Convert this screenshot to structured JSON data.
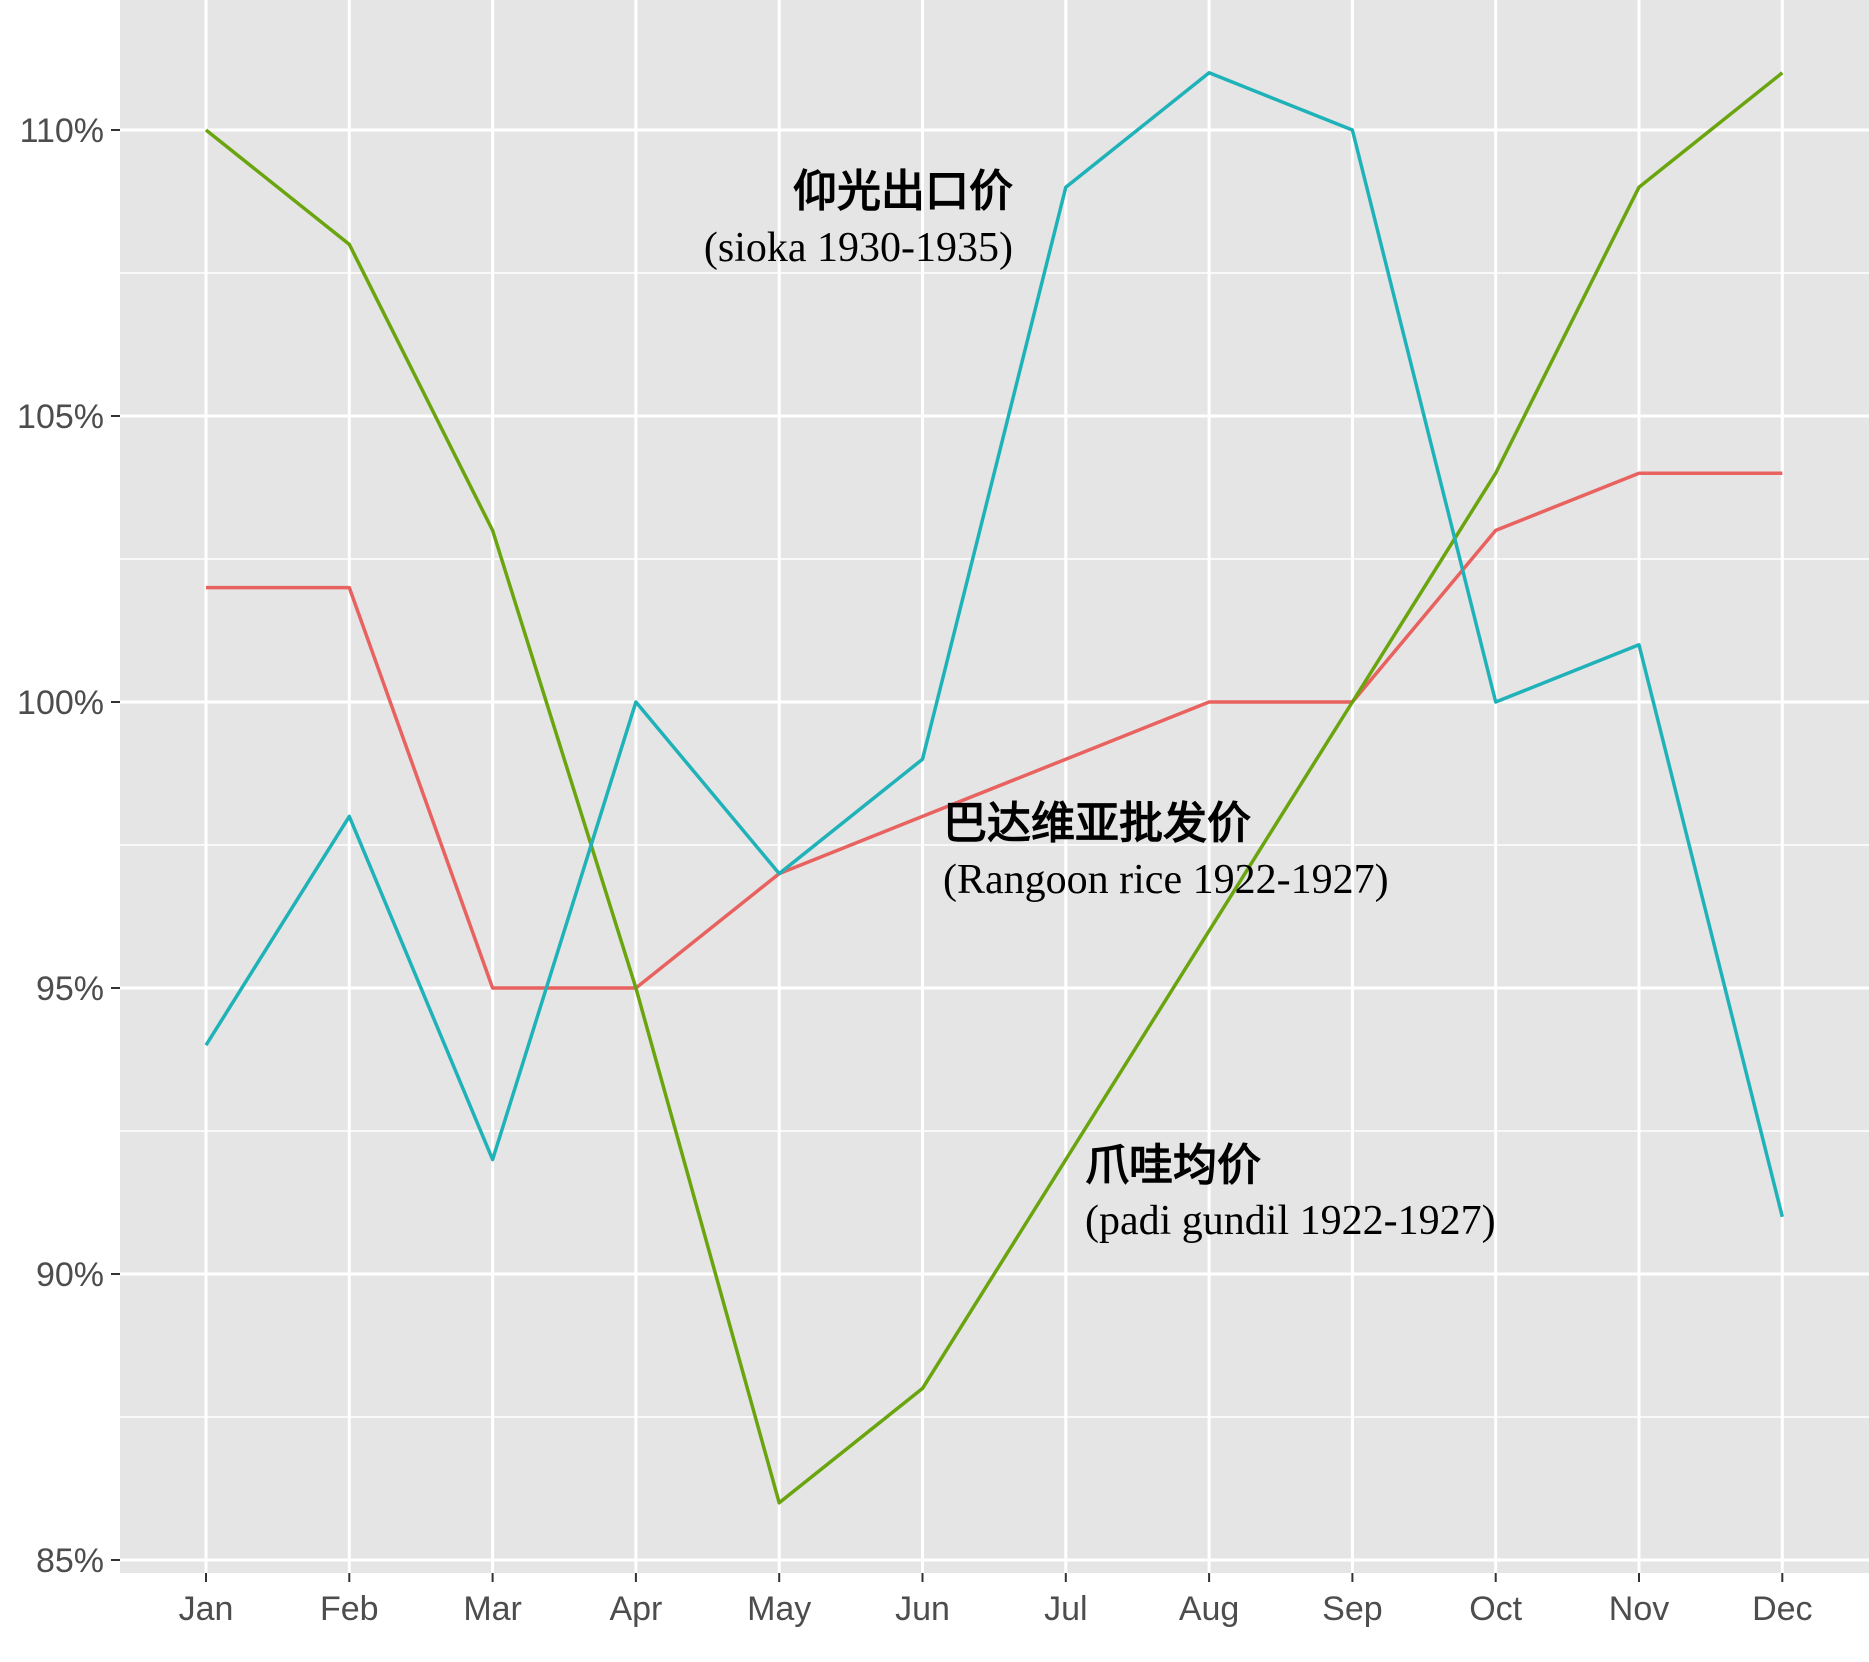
{
  "chart_data": {
    "type": "line",
    "title": "",
    "xlabel": "",
    "ylabel": "",
    "categories": [
      "Jan",
      "Feb",
      "Mar",
      "Apr",
      "May",
      "Jun",
      "Jul",
      "Aug",
      "Sep",
      "Oct",
      "Nov",
      "Dec"
    ],
    "ylim": [
      85,
      112
    ],
    "yticks": [
      85,
      90,
      95,
      100,
      105,
      110
    ],
    "ytick_labels": [
      "85%",
      "90%",
      "95%",
      "100%",
      "105%",
      "110%"
    ],
    "grid": true,
    "legend": "none",
    "series": [
      {
        "key": "batavia",
        "color": "#e8625f",
        "values": [
          102,
          102,
          95,
          95,
          97,
          98,
          99,
          100,
          100,
          103,
          104,
          104
        ]
      },
      {
        "key": "java",
        "color": "#6aa50f",
        "values": [
          110,
          108,
          103,
          95,
          86,
          88,
          92,
          96,
          100,
          104,
          109,
          111
        ]
      },
      {
        "key": "rangoon",
        "color": "#1fb2b8",
        "values": [
          94,
          98,
          92,
          100,
          97,
          99,
          109,
          111,
          110,
          100,
          101,
          91
        ]
      }
    ],
    "annotations": [
      {
        "key": "rangoon",
        "cn": "仰光出口价",
        "en": "(sioka 1930-1935)"
      },
      {
        "key": "batavia",
        "cn": "巴达维亚批发价",
        "en": "(Rangoon rice 1922-1927)"
      },
      {
        "key": "java",
        "cn": "爪哇均价",
        "en": "(padi gundil 1922-1927)"
      }
    ]
  }
}
